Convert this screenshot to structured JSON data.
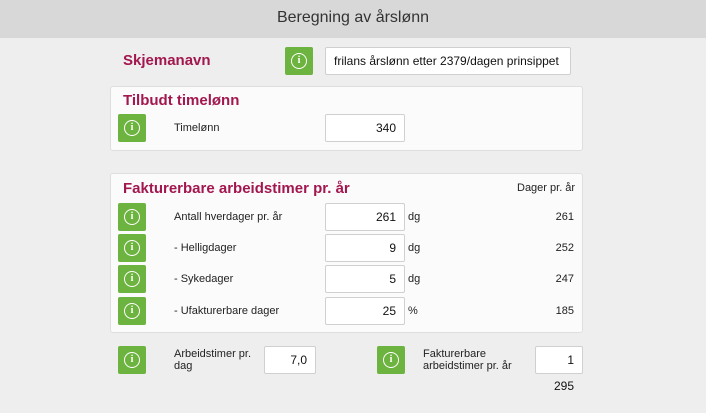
{
  "window": {
    "title": "Beregning av årslønn"
  },
  "schema": {
    "label": "Skjemanavn",
    "name": "frilans årslønn etter 2379/dagen prinsippet"
  },
  "hourly": {
    "heading": "Tilbudt timelønn",
    "label": "Timelønn",
    "value": "340"
  },
  "billable": {
    "heading": "Fakturerbare arbeidstimer pr. år",
    "days_header": "Dager pr. år",
    "rows": [
      {
        "label": "Antall hverdager pr. år",
        "value": "261",
        "unit": "dg",
        "days": "261"
      },
      {
        "label": "- Helligdager",
        "value": "9",
        "unit": "dg",
        "days": "252"
      },
      {
        "label": "- Sykedager",
        "value": "5",
        "unit": "dg",
        "days": "247"
      },
      {
        "label": "- Ufakturerbare dager",
        "value": "25",
        "unit": "%",
        "days": "185"
      }
    ]
  },
  "footer": {
    "hours_per_day_label": "Arbeidstimer pr. dag",
    "hours_per_day_value": "7,0",
    "billable_hours_label": "Fakturerbare arbeidstimer pr. år",
    "billable_hours_value": "1 295"
  },
  "icons": {
    "info": "info-icon"
  },
  "colors": {
    "accent": "#a3174f",
    "button": "#6db33f"
  }
}
